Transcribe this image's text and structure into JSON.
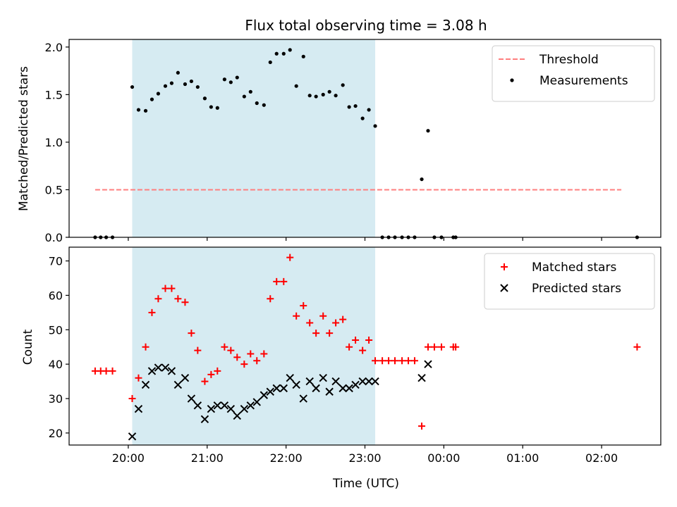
{
  "figure": {
    "title": "Flux total observing time = 3.08 h",
    "xlabel": "Time (UTC)",
    "x_tick_labels": [
      "20:00",
      "21:00",
      "22:00",
      "23:00",
      "00:00",
      "01:00",
      "02:00"
    ],
    "x_tick_hours": [
      20,
      21,
      22,
      23,
      24,
      25,
      26
    ],
    "xlim_hours": [
      19.25,
      26.75
    ],
    "observing_window_hours": [
      20.05,
      23.13
    ],
    "window_color": "#add8e6"
  },
  "chart_data": [
    {
      "type": "scatter",
      "panel": "top",
      "ylabel": "Matched/Predicted stars",
      "ylim": [
        0,
        2.08
      ],
      "y_ticks": [
        0.0,
        0.5,
        1.0,
        1.5,
        2.0
      ],
      "y_tick_labels": [
        "0.0",
        "0.5",
        "1.0",
        "1.5",
        "2.0"
      ],
      "legend_position": "top-right",
      "threshold": {
        "name": "Threshold",
        "value": 0.5,
        "x_range": [
          19.58,
          26.25
        ],
        "color": "#ff7f7f"
      },
      "series": [
        {
          "name": "Measurements",
          "color": "#000000",
          "points": [
            [
              19.58,
              0
            ],
            [
              19.65,
              0
            ],
            [
              19.72,
              0
            ],
            [
              19.8,
              0
            ],
            [
              20.05,
              1.58
            ],
            [
              20.13,
              1.34
            ],
            [
              20.22,
              1.33
            ],
            [
              20.3,
              1.45
            ],
            [
              20.38,
              1.51
            ],
            [
              20.47,
              1.59
            ],
            [
              20.55,
              1.62
            ],
            [
              20.63,
              1.73
            ],
            [
              20.72,
              1.61
            ],
            [
              20.8,
              1.64
            ],
            [
              20.88,
              1.58
            ],
            [
              20.97,
              1.46
            ],
            [
              21.05,
              1.37
            ],
            [
              21.13,
              1.36
            ],
            [
              21.22,
              1.66
            ],
            [
              21.3,
              1.63
            ],
            [
              21.38,
              1.68
            ],
            [
              21.47,
              1.48
            ],
            [
              21.55,
              1.53
            ],
            [
              21.63,
              1.41
            ],
            [
              21.72,
              1.39
            ],
            [
              21.8,
              1.84
            ],
            [
              21.88,
              1.93
            ],
            [
              21.97,
              1.93
            ],
            [
              22.05,
              1.97
            ],
            [
              22.13,
              1.59
            ],
            [
              22.22,
              1.9
            ],
            [
              22.3,
              1.49
            ],
            [
              22.38,
              1.48
            ],
            [
              22.47,
              1.5
            ],
            [
              22.55,
              1.53
            ],
            [
              22.63,
              1.49
            ],
            [
              22.72,
              1.6
            ],
            [
              22.8,
              1.37
            ],
            [
              22.88,
              1.38
            ],
            [
              22.97,
              1.25
            ],
            [
              23.05,
              1.34
            ],
            [
              23.13,
              1.17
            ],
            [
              23.22,
              0
            ],
            [
              23.3,
              0
            ],
            [
              23.38,
              0
            ],
            [
              23.47,
              0
            ],
            [
              23.55,
              0
            ],
            [
              23.63,
              0
            ],
            [
              23.72,
              0.61
            ],
            [
              23.8,
              1.12
            ],
            [
              23.88,
              0
            ],
            [
              23.97,
              0
            ],
            [
              24.12,
              0
            ],
            [
              24.15,
              0
            ],
            [
              26.45,
              0
            ]
          ]
        }
      ]
    },
    {
      "type": "scatter",
      "panel": "bottom",
      "ylabel": "Count",
      "ylim": [
        16.5,
        74
      ],
      "y_ticks": [
        20,
        30,
        40,
        50,
        60,
        70
      ],
      "y_tick_labels": [
        "20",
        "30",
        "40",
        "50",
        "60",
        "70"
      ],
      "legend_position": "top-right",
      "series": [
        {
          "name": "Matched stars",
          "marker": "plus",
          "color": "#ff0000",
          "points": [
            [
              19.58,
              38
            ],
            [
              19.65,
              38
            ],
            [
              19.72,
              38
            ],
            [
              19.8,
              38
            ],
            [
              20.05,
              30
            ],
            [
              20.13,
              36
            ],
            [
              20.22,
              45
            ],
            [
              20.3,
              55
            ],
            [
              20.38,
              59
            ],
            [
              20.47,
              62
            ],
            [
              20.55,
              62
            ],
            [
              20.63,
              59
            ],
            [
              20.72,
              58
            ],
            [
              20.8,
              49
            ],
            [
              20.88,
              44
            ],
            [
              20.97,
              35
            ],
            [
              21.05,
              37
            ],
            [
              21.13,
              38
            ],
            [
              21.22,
              45
            ],
            [
              21.3,
              44
            ],
            [
              21.38,
              42
            ],
            [
              21.47,
              40
            ],
            [
              21.55,
              43
            ],
            [
              21.63,
              41
            ],
            [
              21.72,
              43
            ],
            [
              21.8,
              59
            ],
            [
              21.88,
              64
            ],
            [
              21.97,
              64
            ],
            [
              22.05,
              71
            ],
            [
              22.13,
              54
            ],
            [
              22.22,
              57
            ],
            [
              22.3,
              52
            ],
            [
              22.38,
              49
            ],
            [
              22.47,
              54
            ],
            [
              22.55,
              49
            ],
            [
              22.63,
              52
            ],
            [
              22.72,
              53
            ],
            [
              22.8,
              45
            ],
            [
              22.88,
              47
            ],
            [
              22.97,
              44
            ],
            [
              23.05,
              47
            ],
            [
              23.13,
              41
            ],
            [
              23.22,
              41
            ],
            [
              23.3,
              41
            ],
            [
              23.38,
              41
            ],
            [
              23.47,
              41
            ],
            [
              23.55,
              41
            ],
            [
              23.63,
              41
            ],
            [
              23.72,
              22
            ],
            [
              23.8,
              45
            ],
            [
              23.88,
              45
            ],
            [
              23.97,
              45
            ],
            [
              24.12,
              45
            ],
            [
              24.15,
              45
            ],
            [
              26.45,
              45
            ]
          ]
        },
        {
          "name": "Predicted stars",
          "marker": "x",
          "color": "#000000",
          "points": [
            [
              20.05,
              19
            ],
            [
              20.13,
              27
            ],
            [
              20.22,
              34
            ],
            [
              20.3,
              38
            ],
            [
              20.38,
              39
            ],
            [
              20.47,
              39
            ],
            [
              20.55,
              38
            ],
            [
              20.63,
              34
            ],
            [
              20.72,
              36
            ],
            [
              20.8,
              30
            ],
            [
              20.88,
              28
            ],
            [
              20.97,
              24
            ],
            [
              21.05,
              27
            ],
            [
              21.13,
              28
            ],
            [
              21.22,
              28
            ],
            [
              21.3,
              27
            ],
            [
              21.38,
              25
            ],
            [
              21.47,
              27
            ],
            [
              21.55,
              28
            ],
            [
              21.63,
              29
            ],
            [
              21.72,
              31
            ],
            [
              21.8,
              32
            ],
            [
              21.88,
              33
            ],
            [
              21.97,
              33
            ],
            [
              22.05,
              36
            ],
            [
              22.13,
              34
            ],
            [
              22.22,
              30
            ],
            [
              22.3,
              35
            ],
            [
              22.38,
              33
            ],
            [
              22.47,
              36
            ],
            [
              22.55,
              32
            ],
            [
              22.63,
              35
            ],
            [
              22.72,
              33
            ],
            [
              22.8,
              33
            ],
            [
              22.88,
              34
            ],
            [
              22.97,
              35
            ],
            [
              23.05,
              35
            ],
            [
              23.13,
              35
            ],
            [
              23.72,
              36
            ],
            [
              23.8,
              40
            ]
          ]
        }
      ]
    }
  ]
}
